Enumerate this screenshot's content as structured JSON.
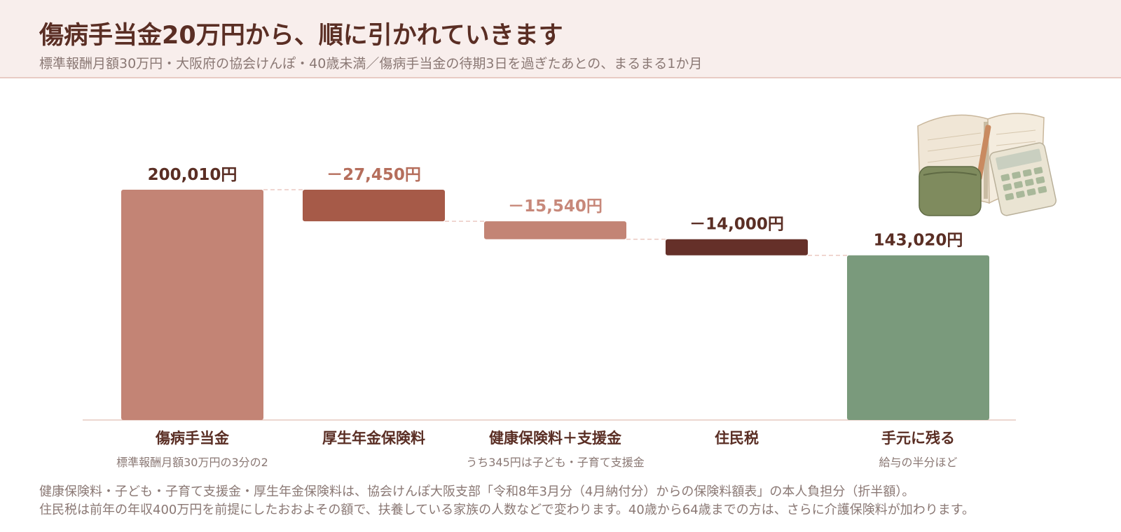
{
  "header": {
    "title": "傷病手当金20万円から、順に引かれていきます",
    "subtitle": "標準報酬月額30万円・大阪府の協会けんぽ・40歳未満／傷病手当金の待期3日を過ぎたあとの、まるまる1か月"
  },
  "chart_data": {
    "type": "bar",
    "subtype": "waterfall",
    "unit": "円",
    "ylim": [
      0,
      200010
    ],
    "grid": false,
    "bars": [
      {
        "category": "傷病手当金",
        "kind": "total",
        "start": 0,
        "end": 200010,
        "value_label": "200,010円",
        "note": "標準報酬月額30万円の3分の2",
        "color": "#c38475",
        "label_color": "#5a2e24"
      },
      {
        "category": "厚生年金保険料",
        "kind": "delta",
        "start": 200010,
        "end": 172560,
        "value_label": "－27,450円",
        "note": "",
        "color": "#a65a48",
        "label_color": "#b56e5c"
      },
      {
        "category": "健康保険料＋支援金",
        "kind": "delta",
        "start": 172560,
        "end": 157020,
        "value_label": "－15,540円",
        "note": "うち345円は子ども・子育て支援金",
        "color": "#c38475",
        "label_color": "#c7887a"
      },
      {
        "category": "住民税",
        "kind": "delta",
        "start": 157020,
        "end": 143020,
        "value_label": "－14,000円",
        "note": "",
        "color": "#653029",
        "label_color": "#5a2e24"
      },
      {
        "category": "手元に残る",
        "kind": "total",
        "start": 0,
        "end": 143020,
        "value_label": "143,020円",
        "note": "給与の半分ほど",
        "color": "#7a9a7c",
        "label_color": "#5a2e24"
      }
    ]
  },
  "footnotes": [
    "健康保険料・子ども・子育て支援金・厚生年金保険料は、協会けんぽ大阪支部「令和8年3月分（4月納付分）からの保険料額表」の本人負担分（折半額）。",
    "住民税は前年の年収400万円を前提にしたおおよその額で、扶養している家族の人数などで変わります。40歳から64歳までの方は、さらに介護保険料が加わります。"
  ],
  "illustration": {
    "icon": "notebook-wallet-calculator-illustration"
  }
}
